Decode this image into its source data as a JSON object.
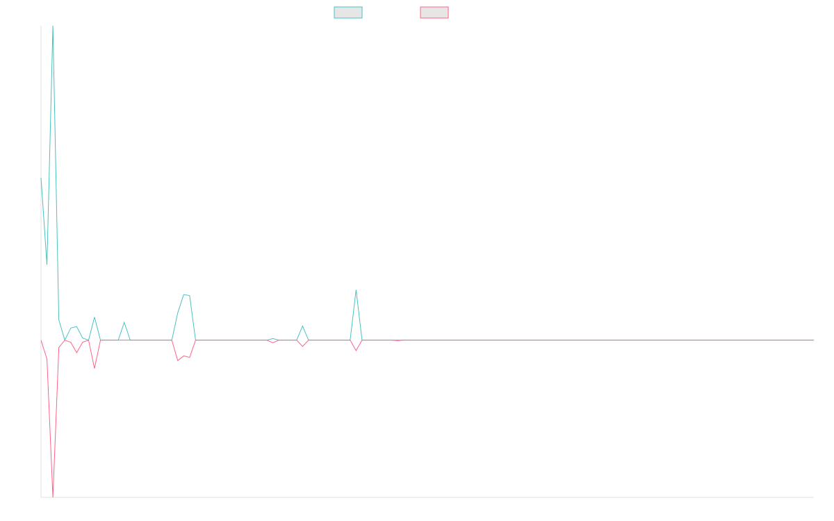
{
  "chart_data": {
    "type": "line",
    "title": "",
    "xlabel": "",
    "ylabel": "",
    "grid": false,
    "legend": "top-center",
    "colors": {
      "series_a": "#4bc0c0",
      "series_b": "#ff6384",
      "legend_fill": "#e6e6e6",
      "axis": "#e0e0e0"
    },
    "ylim": [
      -30,
      60
    ],
    "x": [
      0,
      1,
      2,
      3,
      4,
      5,
      6,
      7,
      8,
      9,
      10,
      11,
      12,
      13,
      14,
      15,
      16,
      17,
      18,
      19,
      20,
      21,
      22,
      23,
      24,
      25,
      26,
      27,
      28,
      29,
      30,
      31,
      32,
      33,
      34,
      35,
      36,
      37,
      38,
      39,
      40,
      41,
      42,
      43,
      44,
      45,
      46,
      47,
      48,
      49,
      50,
      51,
      52,
      53,
      54,
      55,
      56,
      57,
      58,
      59,
      60,
      61,
      62,
      63,
      64,
      65,
      66,
      67,
      68,
      69,
      70,
      71,
      72,
      73,
      74,
      75,
      76,
      77,
      78,
      79,
      80,
      81,
      82,
      83,
      84,
      85,
      86,
      87,
      88,
      89,
      90,
      91,
      92,
      93,
      94,
      95,
      96,
      97,
      98,
      99,
      100,
      101,
      102,
      103,
      104,
      105,
      106,
      107,
      108,
      109,
      110,
      111,
      112,
      113,
      114,
      115,
      116,
      117,
      118,
      119,
      120,
      121,
      122,
      123,
      124,
      125,
      126,
      127,
      128,
      129,
      130
    ],
    "series": [
      {
        "name": "",
        "values": [
          31,
          14.4,
          60,
          3.9,
          0,
          2.3,
          2.6,
          0.4,
          0,
          4.4,
          0,
          0,
          0,
          0,
          3.4,
          0,
          0,
          0,
          0,
          0,
          0,
          0,
          0,
          5.2,
          8.7,
          8.5,
          0,
          0,
          0,
          0,
          0,
          0,
          0,
          0,
          0,
          0,
          0,
          0,
          0,
          0.3,
          0,
          0,
          0,
          0,
          2.7,
          0,
          0,
          0,
          0,
          0,
          0,
          0,
          0,
          9.6,
          0,
          0,
          0,
          0,
          0,
          0,
          0,
          0,
          0,
          0,
          0,
          0,
          0,
          0,
          0,
          0,
          0,
          0,
          0,
          0,
          0,
          0,
          0,
          0,
          0,
          0,
          0,
          0,
          0,
          0,
          0,
          0,
          0,
          0,
          0,
          0,
          0,
          0,
          0,
          0,
          0,
          0,
          0,
          0,
          0,
          0,
          0,
          0,
          0,
          0,
          0,
          0,
          0,
          0,
          0,
          0,
          0,
          0,
          0,
          0,
          0,
          0,
          0,
          0,
          0,
          0,
          0,
          0,
          0,
          0,
          0,
          0,
          0,
          0,
          0,
          0,
          0
        ]
      },
      {
        "name": "",
        "values": [
          0,
          -3.6,
          -30,
          -1.4,
          0,
          -0.4,
          -2.4,
          -0.4,
          0,
          -5.4,
          0,
          0,
          0,
          0,
          0,
          0,
          0,
          0,
          0,
          0,
          0,
          0,
          0,
          -3.9,
          -3,
          -3.3,
          0,
          0,
          0,
          0,
          0,
          0,
          0,
          0,
          0,
          0,
          0,
          0,
          0,
          -0.5,
          0,
          0,
          0,
          0,
          -1.2,
          0,
          0,
          0,
          0,
          0,
          0,
          0,
          0,
          -2,
          0,
          0,
          0,
          0,
          0,
          0,
          -0.1,
          0,
          0,
          0,
          0,
          0,
          0,
          0,
          0,
          0,
          0,
          0,
          0,
          0,
          0,
          0,
          0,
          0,
          0,
          0,
          0,
          0,
          0,
          0,
          0,
          0,
          0,
          0,
          0,
          0,
          0,
          0,
          0,
          0,
          0,
          0,
          0,
          0,
          0,
          0,
          0,
          0,
          0,
          0,
          0,
          0,
          0,
          0,
          0,
          0,
          0,
          0,
          0,
          0,
          0,
          0,
          0,
          0,
          0,
          0,
          0,
          0,
          0,
          0,
          0,
          0,
          0,
          0,
          0,
          0,
          0
        ]
      }
    ]
  }
}
